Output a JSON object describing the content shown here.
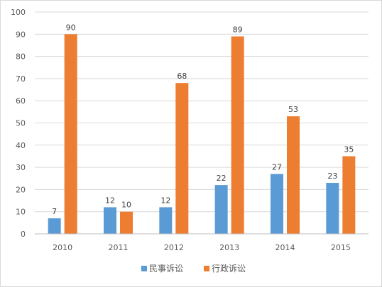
{
  "chart_data": {
    "type": "bar",
    "categories": [
      "2010",
      "2011",
      "2012",
      "2013",
      "2014",
      "2015"
    ],
    "series": [
      {
        "name": "民事诉讼",
        "values": [
          7,
          12,
          12,
          22,
          27,
          23
        ],
        "color": "#5b9bd5"
      },
      {
        "name": "行政诉讼",
        "values": [
          90,
          10,
          68,
          89,
          53,
          35
        ],
        "color": "#ed7d31"
      }
    ],
    "yticks": [
      0,
      10,
      20,
      30,
      40,
      50,
      60,
      70,
      80,
      90,
      100
    ],
    "ylim": [
      0,
      100
    ],
    "grid": true,
    "legend_position": "bottom",
    "data_labels": true,
    "title": "",
    "xlabel": "",
    "ylabel": ""
  }
}
